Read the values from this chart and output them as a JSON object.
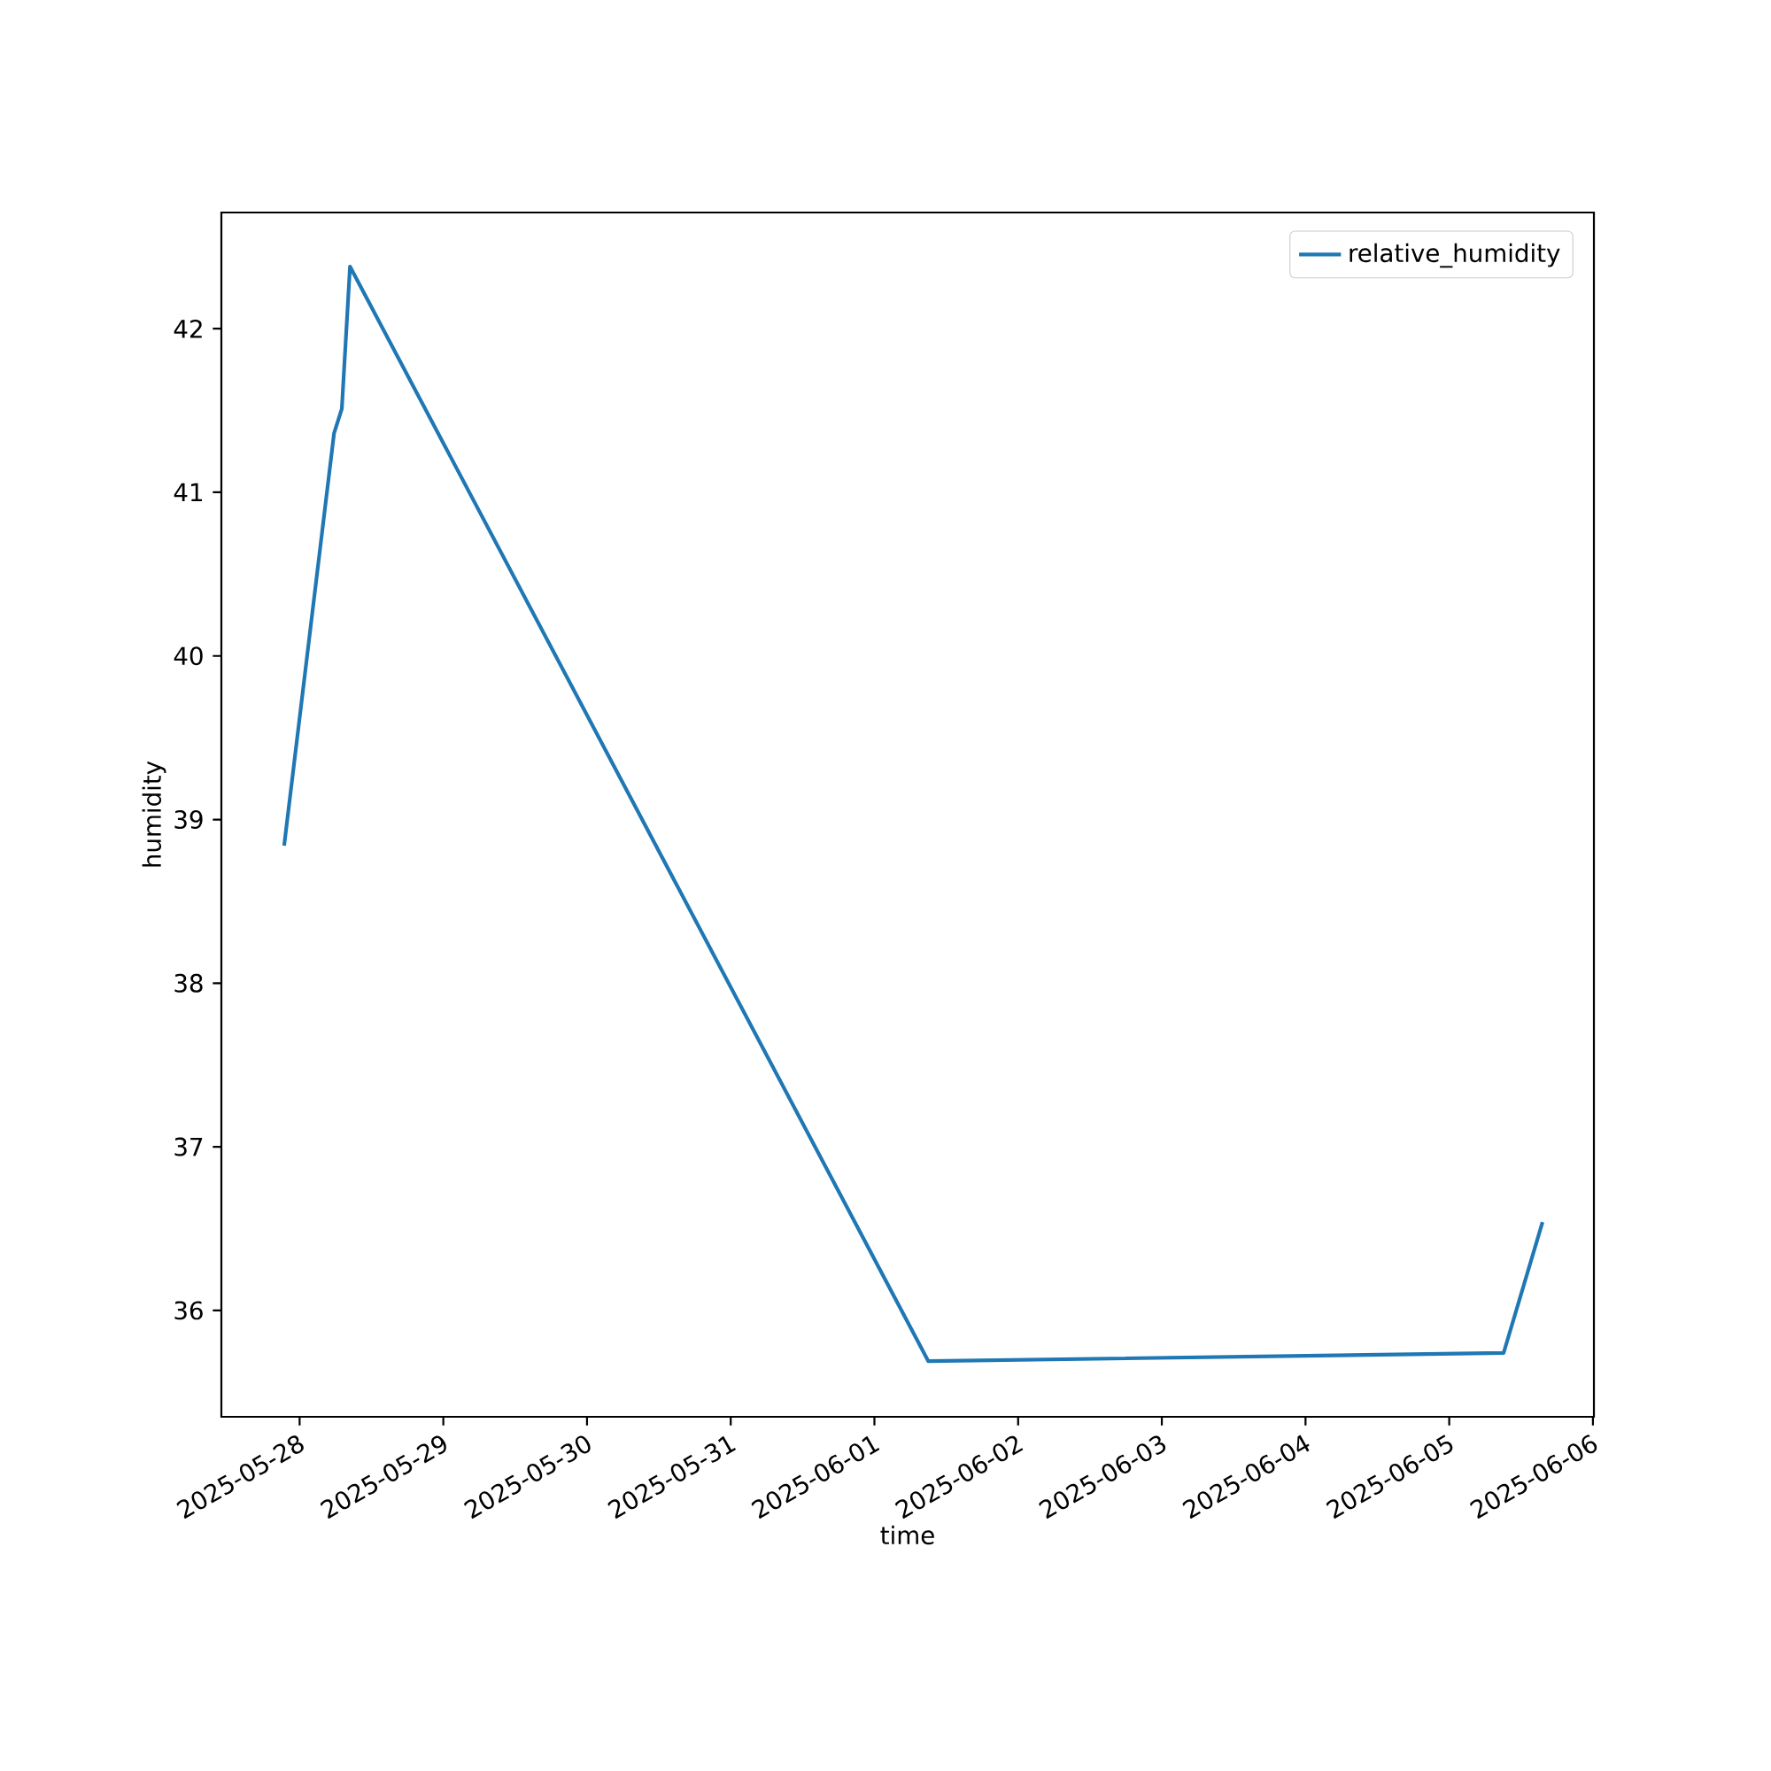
{
  "chart_data": {
    "type": "line",
    "xlabel": "time",
    "ylabel": "humidity",
    "x": [
      "2025-05-27T21:25",
      "2025-05-28T05:45",
      "2025-05-28T07:03",
      "2025-05-28T08:25",
      "2025-06-01T09:00",
      "2025-06-05T09:05",
      "2025-06-05T15:35"
    ],
    "series": [
      {
        "name": "relative_humidity",
        "color": "#1f77b4",
        "values": [
          38.84,
          41.36,
          41.51,
          42.38,
          35.69,
          35.74,
          36.54
        ]
      }
    ],
    "xlim": [
      "2025-05-27T10:56",
      "2025-06-06T00:10"
    ],
    "xticks": [
      "2025-05-28",
      "2025-05-29",
      "2025-05-30",
      "2025-05-31",
      "2025-06-01",
      "2025-06-02",
      "2025-06-03",
      "2025-06-04",
      "2025-06-05",
      "2025-06-06"
    ],
    "ylim": [
      35.35,
      42.71
    ],
    "yticks": [
      36,
      37,
      38,
      39,
      40,
      41,
      42
    ],
    "legend": "top right",
    "grid": false
  }
}
